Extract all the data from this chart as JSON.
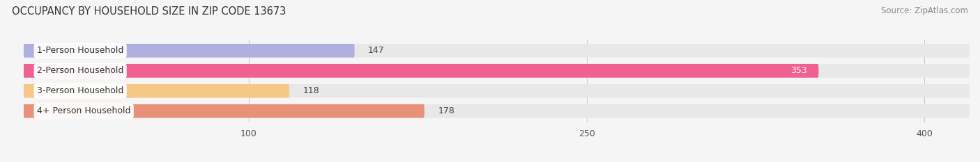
{
  "title": "OCCUPANCY BY HOUSEHOLD SIZE IN ZIP CODE 13673",
  "source": "Source: ZipAtlas.com",
  "categories": [
    "1-Person Household",
    "2-Person Household",
    "3-Person Household",
    "4+ Person Household"
  ],
  "values": [
    147,
    353,
    118,
    178
  ],
  "bar_colors": [
    "#b0b0e0",
    "#f06090",
    "#f5c888",
    "#e8917a"
  ],
  "bar_bg_color": "#e8e8e8",
  "xlim": [
    0,
    420
  ],
  "xticks": [
    100,
    250,
    400
  ],
  "figsize": [
    14.06,
    2.33
  ],
  "dpi": 100,
  "title_fontsize": 10.5,
  "source_fontsize": 8.5,
  "bar_label_fontsize": 9,
  "tick_fontsize": 9,
  "category_fontsize": 9,
  "bar_height": 0.68,
  "bg_color": "#f5f5f5"
}
